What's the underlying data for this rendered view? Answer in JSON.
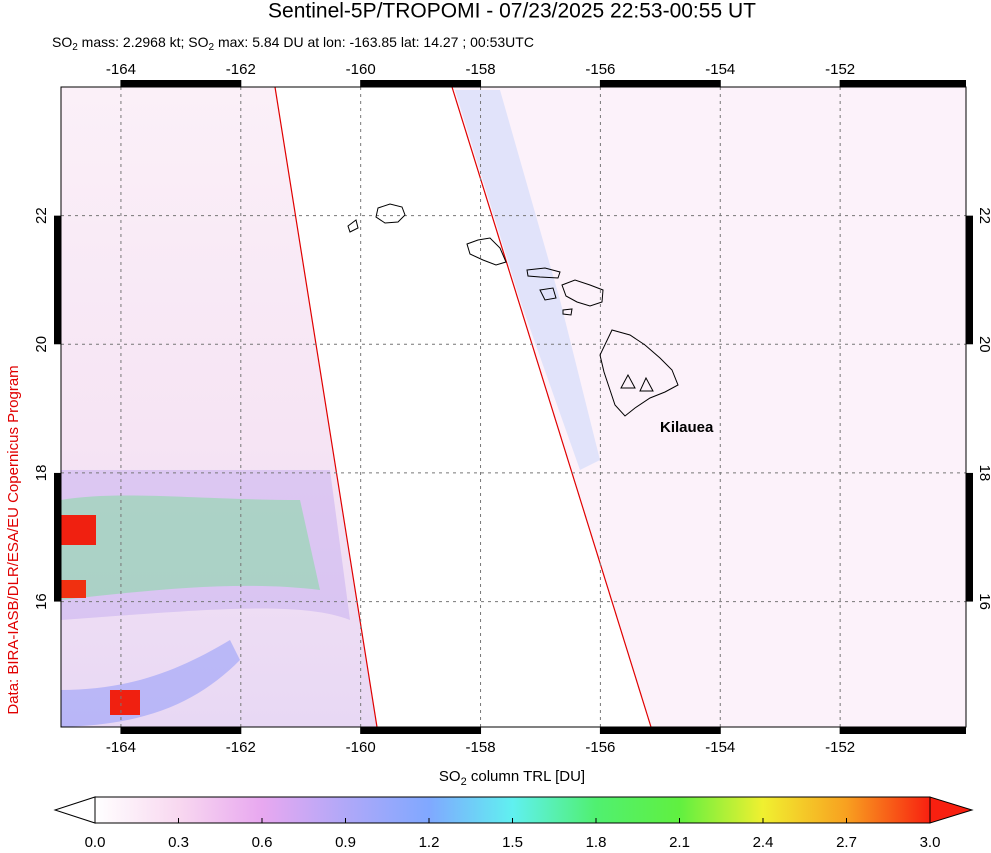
{
  "title": "Sentinel-5P/TROPOMI - 07/23/2025 22:53-00:55 UT",
  "subtitle": [
    "SO",
    "2",
    " mass: 2.2968 kt; SO",
    "2",
    " max: 5.84 DU at lon: -163.85 lat: 14.27 ; 00:53UTC"
  ],
  "map": {
    "xlim": [
      -165,
      -149.9
    ],
    "ylim": [
      14.05,
      24.0
    ],
    "xticks": [
      -164,
      -162,
      -160,
      -158,
      -156,
      -154,
      -152
    ],
    "yticks": [
      16,
      18,
      20,
      22
    ],
    "grid": true,
    "annotation": "Kilauea"
  },
  "colorbar": {
    "label": [
      "SO",
      "2",
      " column TRL [DU]"
    ],
    "lim": [
      0,
      3
    ],
    "colors": [
      "#ffffff",
      "#f8d8f0",
      "#e8a8f0",
      "#b0a8f8",
      "#80a8ff",
      "#60f0f0",
      "#50f070",
      "#60f040",
      "#f0f030",
      "#f8a020",
      "#f82010"
    ],
    "ticks": [
      {
        "value": 0,
        "label": "0.0"
      },
      {
        "value": 0.3,
        "label": "0.3"
      },
      {
        "value": 0.6,
        "label": "0.6"
      },
      {
        "value": 0.9,
        "label": "0.9"
      },
      {
        "value": 1.2,
        "label": "1.2"
      },
      {
        "value": 1.5,
        "label": "1.5"
      },
      {
        "value": 1.8,
        "label": "1.8"
      },
      {
        "value": 2.1,
        "label": "2.1"
      },
      {
        "value": 2.4,
        "label": "2.4"
      },
      {
        "value": 2.7,
        "label": "2.7"
      },
      {
        "value": 3.0,
        "label": "3.0"
      }
    ]
  },
  "credit": "Data: BIRA-IASB/DLR/ESA/EU Copernicus Program"
}
